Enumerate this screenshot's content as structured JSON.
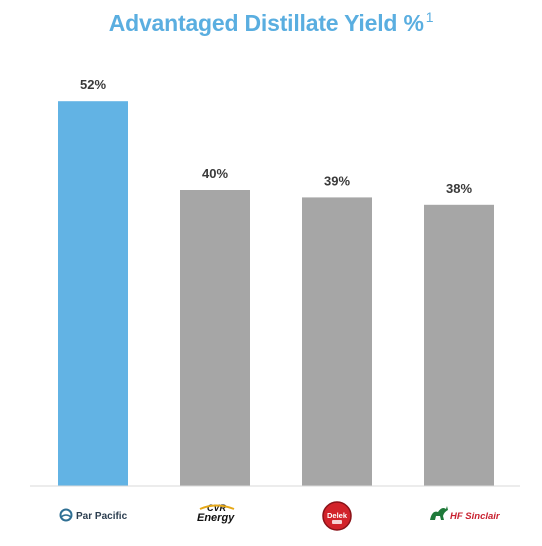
{
  "title": "Advantaged Distillate Yield %",
  "title_superscript": "1",
  "colors": {
    "title": "#5aaee0",
    "highlight_bar": "#62b3e4",
    "peer_bar": "#a6a6a6",
    "axis": "#d9d9d9"
  },
  "chart_data": {
    "type": "bar",
    "categories": [
      "Par Pacific",
      "CVR Energy",
      "Delek",
      "HF Sinclair"
    ],
    "values": [
      52,
      40,
      39,
      38
    ],
    "value_labels": [
      "52%",
      "40%",
      "39%",
      "38%"
    ],
    "title": "Advantaged Distillate Yield %",
    "xlabel": "",
    "ylabel": "",
    "ylim": [
      0,
      60
    ],
    "grid": false,
    "legend": "none",
    "highlight_index": 0
  },
  "logos": {
    "par_pacific": {
      "text": "Par Pacific",
      "icon": "par-pacific-logo-icon"
    },
    "cvr_energy": {
      "text_top": "CVR",
      "text_bottom": "Energy",
      "icon": "cvr-energy-logo"
    },
    "delek": {
      "text": "Delek",
      "icon": "delek-logo"
    },
    "hf_sinclair": {
      "text": "HF Sinclair",
      "icon": "hf-sinclair-dinosaur-icon"
    }
  }
}
